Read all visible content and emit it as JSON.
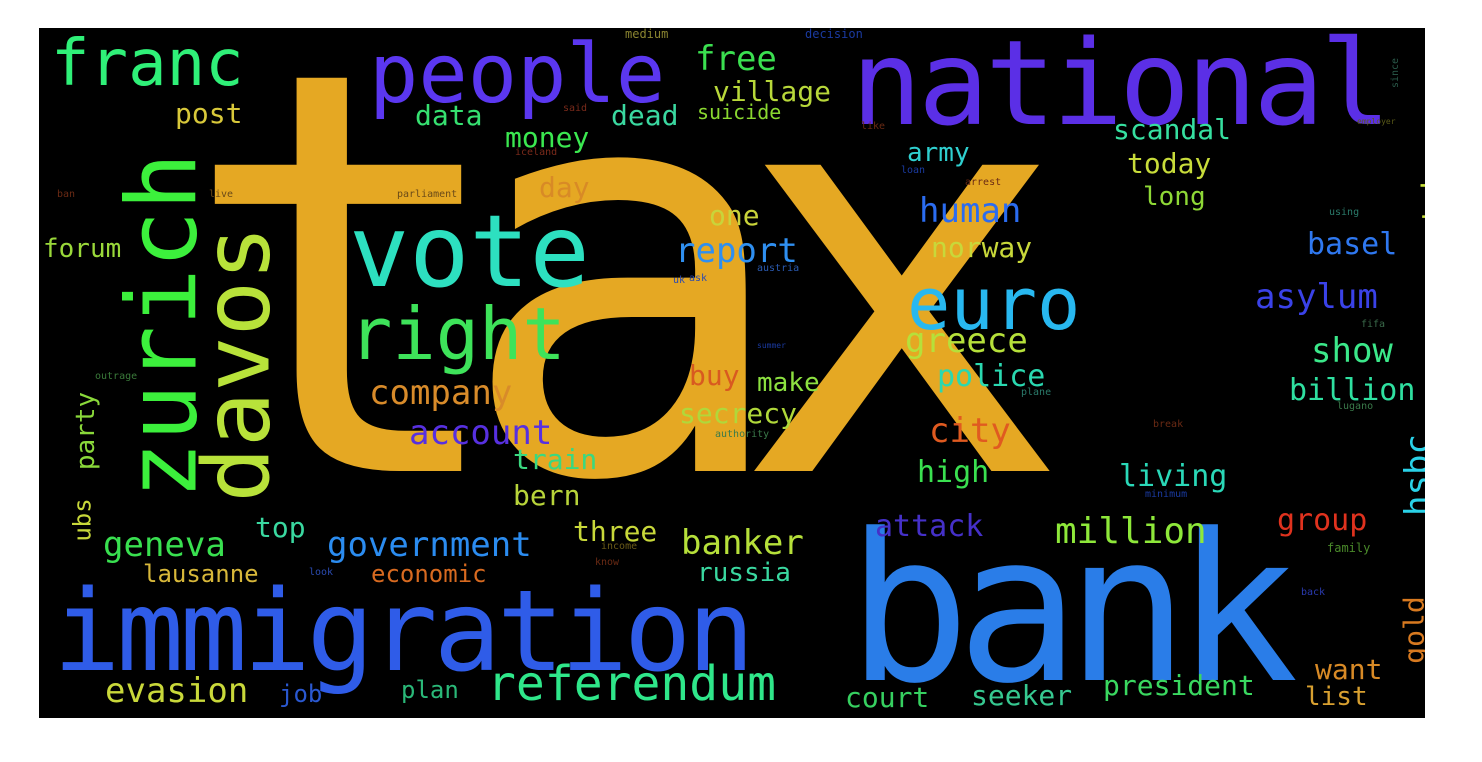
{
  "word_cloud": {
    "background": "#000000",
    "words": [
      {
        "text": "tax",
        "color": "#e5a823"
      },
      {
        "text": "bank",
        "color": "#2a7de8"
      },
      {
        "text": "national",
        "color": "#5b2fe6"
      },
      {
        "text": "immigration",
        "color": "#2f5ce8"
      },
      {
        "text": "people",
        "color": "#5b37f0"
      },
      {
        "text": "vote",
        "color": "#2de0c0"
      },
      {
        "text": "zurich",
        "color": "#3cf03c"
      },
      {
        "text": "davos",
        "color": "#b8e23a"
      },
      {
        "text": "franc",
        "color": "#2ff078"
      },
      {
        "text": "right",
        "color": "#3ee35a"
      },
      {
        "text": "euro",
        "color": "#28b8f0"
      },
      {
        "text": "referendum",
        "color": "#2fe78a"
      },
      {
        "text": "company",
        "color": "#d88b2a"
      },
      {
        "text": "account",
        "color": "#5730e0"
      },
      {
        "text": "government",
        "color": "#2b8cf0"
      },
      {
        "text": "geneva",
        "color": "#39e050"
      },
      {
        "text": "evasion",
        "color": "#c9d83a"
      },
      {
        "text": "banker",
        "color": "#b6e03a"
      },
      {
        "text": "million",
        "color": "#8ee83a"
      },
      {
        "text": "report",
        "color": "#2f8ff0"
      },
      {
        "text": "human",
        "color": "#2b6cf0"
      },
      {
        "text": "asylum",
        "color": "#3a42e8"
      },
      {
        "text": "greece",
        "color": "#b6e03a"
      },
      {
        "text": "police",
        "color": "#2ad8b0"
      },
      {
        "text": "city",
        "color": "#e05a20"
      },
      {
        "text": "show",
        "color": "#3be88a"
      },
      {
        "text": "billion",
        "color": "#2fe0a0"
      },
      {
        "text": "hsbc",
        "color": "#2ad2e8"
      },
      {
        "text": "basel",
        "color": "#2f78f0"
      },
      {
        "text": "take",
        "color": "#c8e03a"
      },
      {
        "text": "free",
        "color": "#3be050"
      },
      {
        "text": "village",
        "color": "#b8d83a"
      },
      {
        "text": "post",
        "color": "#d8c83a"
      },
      {
        "text": "data",
        "color": "#36e070"
      },
      {
        "text": "dead",
        "color": "#3ad8a0"
      },
      {
        "text": "suicide",
        "color": "#8ad830"
      },
      {
        "text": "money",
        "color": "#3be850"
      },
      {
        "text": "day",
        "color": "#d88a26"
      },
      {
        "text": "one",
        "color": "#c9d43a"
      },
      {
        "text": "army",
        "color": "#2fd0d0"
      },
      {
        "text": "scandal",
        "color": "#36e0a0"
      },
      {
        "text": "today",
        "color": "#c8dc3a"
      },
      {
        "text": "long",
        "color": "#8ed836"
      },
      {
        "text": "norway",
        "color": "#c8d83a"
      },
      {
        "text": "forum",
        "color": "#9ad83a"
      },
      {
        "text": "party",
        "color": "#8ad83a"
      },
      {
        "text": "ubs",
        "color": "#c8d83a"
      },
      {
        "text": "buy",
        "color": "#d85a20"
      },
      {
        "text": "make",
        "color": "#8ce040"
      },
      {
        "text": "secrecy",
        "color": "#b0d83a"
      },
      {
        "text": "train",
        "color": "#3ad880"
      },
      {
        "text": "high",
        "color": "#3ae050"
      },
      {
        "text": "living",
        "color": "#2ad8b8"
      },
      {
        "text": "bern",
        "color": "#b8d43a"
      },
      {
        "text": "top",
        "color": "#3ad8a0"
      },
      {
        "text": "three",
        "color": "#c8d83a"
      },
      {
        "text": "attack",
        "color": "#4530c8"
      },
      {
        "text": "group",
        "color": "#e0321e"
      },
      {
        "text": "lausanne",
        "color": "#d8b83a"
      },
      {
        "text": "economic",
        "color": "#d86a20"
      },
      {
        "text": "russia",
        "color": "#3ad8a0"
      },
      {
        "text": "gold",
        "color": "#d87a20"
      },
      {
        "text": "want",
        "color": "#d88a26"
      },
      {
        "text": "list",
        "color": "#d8a030"
      },
      {
        "text": "job",
        "color": "#2a58d0"
      },
      {
        "text": "plan",
        "color": "#2ab878"
      },
      {
        "text": "court",
        "color": "#36d060"
      },
      {
        "text": "seeker",
        "color": "#36c890"
      },
      {
        "text": "president",
        "color": "#3ad860"
      },
      {
        "text": "medium",
        "color": "#8a8430"
      },
      {
        "text": "decision",
        "color": "#1a3aa0"
      },
      {
        "text": "said",
        "color": "#7a2a1a"
      },
      {
        "text": "iceland",
        "color": "#7a2a1a"
      },
      {
        "text": "like",
        "color": "#6a2a14"
      },
      {
        "text": "loan",
        "color": "#1a3aa0"
      },
      {
        "text": "arrest",
        "color": "#6a2a14"
      },
      {
        "text": "parliament",
        "color": "#6a4a18"
      },
      {
        "text": "ban",
        "color": "#6a2a14"
      },
      {
        "text": "live",
        "color": "#6a4a18"
      },
      {
        "text": "ask",
        "color": "#2a4ab0"
      },
      {
        "text": "austria",
        "color": "#2a5ab0"
      },
      {
        "text": "uk",
        "color": "#2a4ab0"
      },
      {
        "text": "outrage",
        "color": "#3a7a3a"
      },
      {
        "text": "authority",
        "color": "#3a7a4a"
      },
      {
        "text": "plane",
        "color": "#2a7a6a"
      },
      {
        "text": "lugano",
        "color": "#3a7a4a"
      },
      {
        "text": "break",
        "color": "#6a2a14"
      },
      {
        "text": "minimum",
        "color": "#1a3aa0"
      },
      {
        "text": "income",
        "color": "#6a5a18"
      },
      {
        "text": "know",
        "color": "#6a2a14"
      },
      {
        "text": "look",
        "color": "#2a4ab0"
      },
      {
        "text": "family",
        "color": "#4a8a2a"
      },
      {
        "text": "back",
        "color": "#2a3ab0"
      },
      {
        "text": "using",
        "color": "#2a7a6a"
      },
      {
        "text": "since",
        "color": "#2a5a4a"
      },
      {
        "text": "fifa",
        "color": "#3a6a4a"
      },
      {
        "text": "employer",
        "color": "#5a5a18"
      },
      {
        "text": "summer",
        "color": "#1a3aa0"
      }
    ]
  }
}
